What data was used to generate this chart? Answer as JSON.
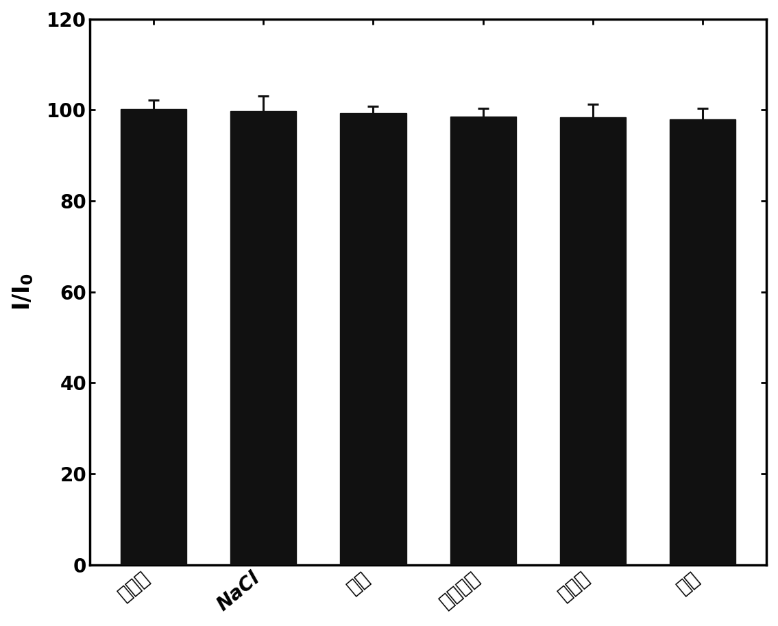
{
  "categories": [
    "葛萄糖",
    "NaCl",
    "尿酸",
    "抗坏血酸",
    "多巴胺",
    "尿素"
  ],
  "values": [
    100.2,
    99.8,
    99.3,
    98.6,
    98.4,
    97.9
  ],
  "errors": [
    2.0,
    3.2,
    1.5,
    1.8,
    2.8,
    2.5
  ],
  "bar_color": "#111111",
  "edge_color": "#111111",
  "ylim": [
    0,
    120
  ],
  "yticks": [
    0,
    20,
    40,
    60,
    80,
    100,
    120
  ],
  "background_color": "#ffffff",
  "bar_width": 0.6,
  "ylabel_fontsize": 24,
  "tick_fontsize": 20,
  "xlabel_rotation": 40
}
